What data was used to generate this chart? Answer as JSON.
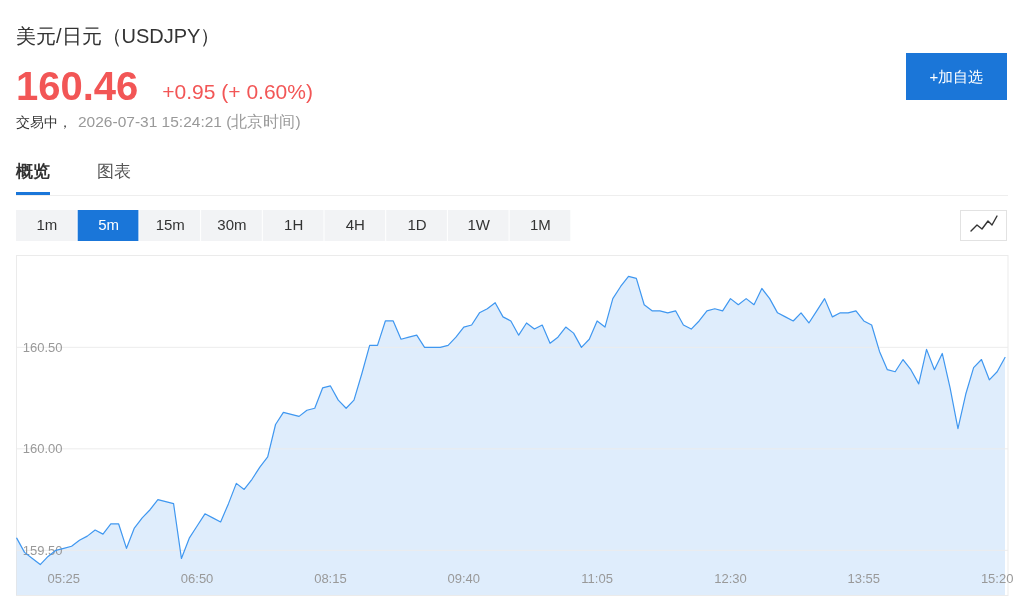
{
  "chart_data": {
    "type": "area",
    "title": "美元/日元（USDJPY）",
    "annotations": [
      "160.46",
      "+0.95 (+ 0.60%)",
      "交易中，",
      "2026-07-31 15:24:21 (北京时间)",
      "概览",
      "图表",
      "1m",
      "5m",
      "15m",
      "30m",
      "1H",
      "4H",
      "1D",
      "1W",
      "1M",
      "+加自选"
    ],
    "x": [
      4.9167,
      5,
      5.0833,
      5.1667,
      5.25,
      5.3333,
      5.4167,
      5.5,
      5.5833,
      5.6667,
      5.75,
      5.8333,
      5.9167,
      6,
      6.0833,
      6.1667,
      6.25,
      6.3333,
      6.4167,
      6.5,
      6.5833,
      6.6667,
      6.75,
      6.8333,
      6.9167,
      7,
      7.0833,
      7.1667,
      7.25,
      7.3333,
      7.4167,
      7.5,
      7.5833,
      7.6667,
      7.75,
      7.8333,
      7.9167,
      8,
      8.0833,
      8.1667,
      8.25,
      8.3333,
      8.4167,
      8.5,
      8.5833,
      8.6667,
      8.75,
      8.8333,
      8.9167,
      9,
      9.0833,
      9.1667,
      9.25,
      9.3333,
      9.4167,
      9.5,
      9.5833,
      9.6667,
      9.75,
      9.8333,
      9.9167,
      10,
      10.0833,
      10.1667,
      10.25,
      10.3333,
      10.4167,
      10.5,
      10.5833,
      10.6667,
      10.75,
      10.8333,
      10.9167,
      11,
      11.0833,
      11.1667,
      11.25,
      11.3333,
      11.4167,
      11.5,
      11.5833,
      11.6667,
      11.75,
      11.8333,
      11.9167,
      12,
      12.0833,
      12.1667,
      12.25,
      12.3333,
      12.4167,
      12.5,
      12.5833,
      12.6667,
      12.75,
      12.8333,
      12.9167,
      13,
      13.0833,
      13.1667,
      13.25,
      13.3333,
      13.4167,
      13.5,
      13.5833,
      13.6667,
      13.75,
      13.8333,
      13.9167,
      14,
      14.0833,
      14.1667,
      14.25,
      14.3333,
      14.4167,
      14.5,
      14.5833,
      14.6667,
      14.75,
      14.8333,
      14.9167,
      15,
      15.0833,
      15.1667,
      15.25,
      15.3333,
      15.4167
    ],
    "series": [
      {
        "color": "#3f97f0",
        "values": [
          159.56,
          159.49,
          159.46,
          159.43,
          159.47,
          159.5,
          159.51,
          159.52,
          159.55,
          159.57,
          159.6,
          159.58,
          159.63,
          159.63,
          159.51,
          159.61,
          159.66,
          159.7,
          159.75,
          159.74,
          159.73,
          159.46,
          159.56,
          159.62,
          159.68,
          159.66,
          159.64,
          159.73,
          159.83,
          159.8,
          159.85,
          159.91,
          159.96,
          160.12,
          160.18,
          160.17,
          160.16,
          160.19,
          160.2,
          160.3,
          160.31,
          160.24,
          160.2,
          160.24,
          160.37,
          160.51,
          160.51,
          160.63,
          160.63,
          160.54,
          160.55,
          160.56,
          160.5,
          160.5,
          160.5,
          160.51,
          160.55,
          160.6,
          160.61,
          160.67,
          160.69,
          160.72,
          160.65,
          160.63,
          160.56,
          160.62,
          160.59,
          160.61,
          160.52,
          160.55,
          160.6,
          160.57,
          160.5,
          160.54,
          160.63,
          160.6,
          160.74,
          160.8,
          160.85,
          160.84,
          160.71,
          160.68,
          160.68,
          160.67,
          160.68,
          160.61,
          160.59,
          160.63,
          160.68,
          160.69,
          160.68,
          160.74,
          160.71,
          160.74,
          160.71,
          160.79,
          160.74,
          160.67,
          160.65,
          160.63,
          160.67,
          160.62,
          160.68,
          160.74,
          160.65,
          160.67,
          160.67,
          160.68,
          160.63,
          160.61,
          160.48,
          160.39,
          160.38,
          160.44,
          160.39,
          160.32,
          160.49,
          160.39,
          160.47,
          160.3,
          160.1,
          160.27,
          160.4,
          160.44,
          160.34,
          160.38,
          160.45
        ]
      }
    ],
    "xlim": [
      4.9167,
      15.4167
    ],
    "ylim": [
      159.28,
      160.95
    ],
    "xticks": [
      {
        "value": 5.4167,
        "label": "05:25"
      },
      {
        "value": 6.8333,
        "label": "06:50"
      },
      {
        "value": 8.25,
        "label": "08:15"
      },
      {
        "value": 9.6667,
        "label": "09:40"
      },
      {
        "value": 11.0833,
        "label": "11:05"
      },
      {
        "value": 12.5,
        "label": "12:30"
      },
      {
        "value": 13.9167,
        "label": "13:55"
      },
      {
        "value": 15.3333,
        "label": "15:20"
      }
    ],
    "yticks": [
      {
        "value": 159.5,
        "label": "159.50"
      },
      {
        "value": 160,
        "label": "160.00"
      },
      {
        "value": 160.5,
        "label": "160.50"
      }
    ],
    "grid": "y"
  }
}
